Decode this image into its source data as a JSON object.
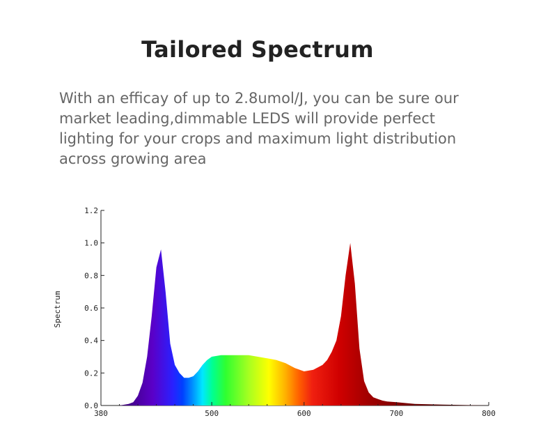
{
  "heading": "Tailored Spectrum",
  "paragraph_lines": [
    "With an efficay of up to 2.8umol/J, you can be sure our",
    "market leading,dimmable LEDS will provide perfect",
    "lighting for your crops and maximum light distribution",
    "across growing area"
  ],
  "chart_data": {
    "type": "area",
    "title": "",
    "xlabel": "",
    "ylabel": "Spectrum",
    "xlim": [
      380,
      800
    ],
    "ylim": [
      0,
      1.2
    ],
    "x_ticks": [
      "380",
      "500",
      "600",
      "700",
      "800"
    ],
    "y_ticks": [
      "0.0",
      "0.2",
      "0.4",
      "0.6",
      "0.8",
      "1.0",
      "1.2"
    ],
    "grid": false,
    "fill": "visible spectrum gradient",
    "x": [
      380,
      400,
      410,
      415,
      420,
      425,
      430,
      435,
      440,
      445,
      450,
      455,
      460,
      465,
      470,
      475,
      480,
      485,
      490,
      495,
      500,
      510,
      520,
      530,
      540,
      550,
      560,
      570,
      580,
      590,
      600,
      610,
      620,
      625,
      630,
      635,
      640,
      645,
      650,
      655,
      660,
      665,
      670,
      675,
      680,
      685,
      690,
      700,
      720,
      750,
      780,
      800
    ],
    "values": [
      0,
      0,
      0.01,
      0.02,
      0.06,
      0.14,
      0.3,
      0.55,
      0.85,
      0.96,
      0.7,
      0.38,
      0.25,
      0.2,
      0.17,
      0.17,
      0.18,
      0.21,
      0.25,
      0.28,
      0.3,
      0.31,
      0.31,
      0.31,
      0.31,
      0.3,
      0.29,
      0.28,
      0.26,
      0.23,
      0.21,
      0.22,
      0.25,
      0.28,
      0.33,
      0.4,
      0.55,
      0.8,
      1.0,
      0.75,
      0.35,
      0.15,
      0.08,
      0.05,
      0.04,
      0.03,
      0.025,
      0.02,
      0.01,
      0.005,
      0.002,
      0
    ]
  }
}
